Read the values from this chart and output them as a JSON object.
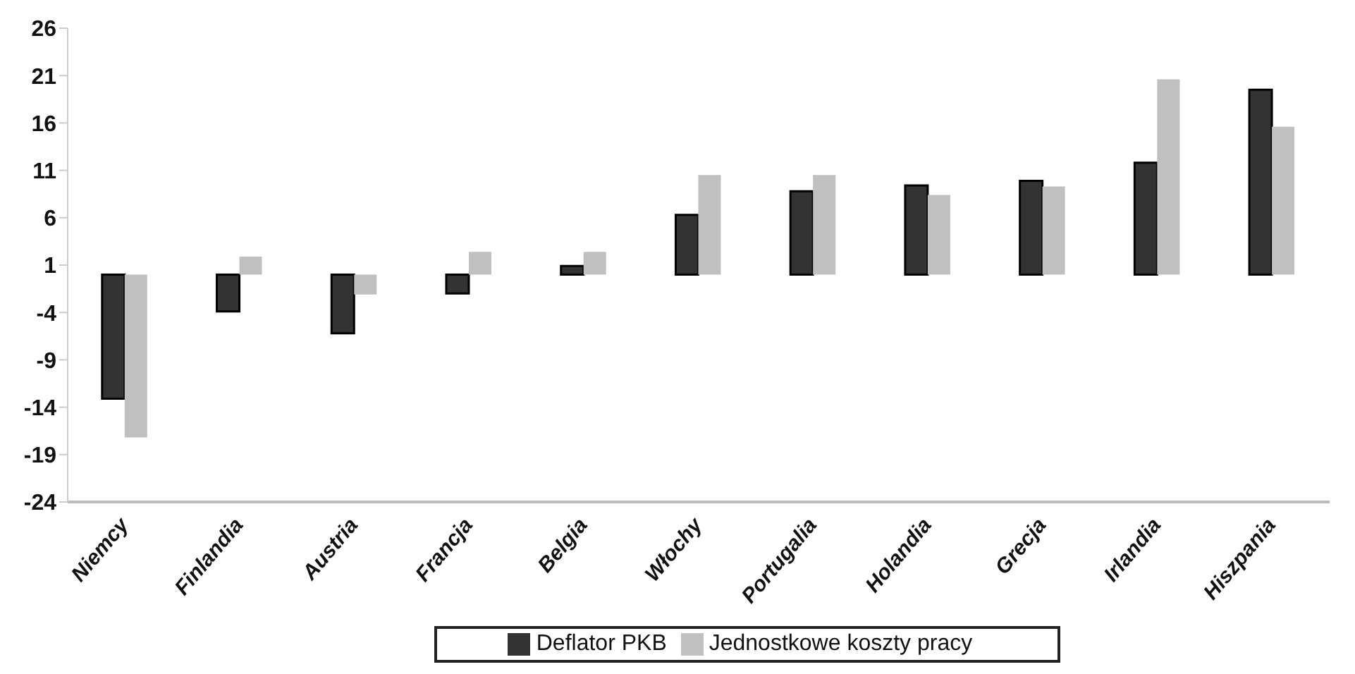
{
  "chart_data": {
    "type": "bar",
    "categories": [
      "Niemcy",
      "Finlandia",
      "Austria",
      "Francja",
      "Belgia",
      "Włochy",
      "Portugalia",
      "Holandia",
      "Grecja",
      "Irlandia",
      "Hiszpania"
    ],
    "series": [
      {
        "name": "Deflator PKB",
        "color": "#333333",
        "values": [
          -13.1,
          -3.9,
          -6.2,
          -2.0,
          0.9,
          6.3,
          8.8,
          9.4,
          9.9,
          11.8,
          19.5
        ]
      },
      {
        "name": "Jednostkowe koszty pracy",
        "color": "#c0c0c0",
        "values": [
          -17.2,
          1.9,
          -2.1,
          2.4,
          2.4,
          10.5,
          10.5,
          8.4,
          9.3,
          20.6,
          15.6
        ]
      }
    ],
    "ylim": [
      -24,
      26
    ],
    "yticks": [
      -24,
      -19,
      -14,
      -9,
      -4,
      1,
      6,
      11,
      16,
      21,
      26
    ],
    "grid": false,
    "legend": "bottom"
  }
}
